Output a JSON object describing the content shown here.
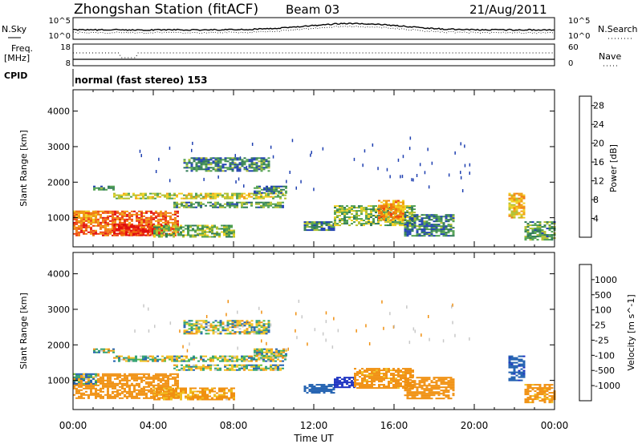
{
  "header": {
    "station": "Zhongshan Station (fitACF)",
    "beam": "Beam 03",
    "date": "21/Aug/2011"
  },
  "nsky_panel": {
    "left_label": "N.Sky",
    "right_label": "N.Search",
    "left_ticks": [
      "10^5",
      "10^0"
    ],
    "right_ticks": [
      "10^5",
      "10^0"
    ]
  },
  "freq_panel": {
    "left_label_1": "Freq.",
    "left_label_2": "[MHz]",
    "left_ticks": [
      "18",
      "8"
    ],
    "right_ticks": [
      "60",
      "0"
    ],
    "right_label": "Nave"
  },
  "cpid_panel": {
    "label": "CPID",
    "text": "normal (fast stereo) 153"
  },
  "x_axis": {
    "label": "Time UT",
    "ticks": [
      "00:00",
      "04:00",
      "08:00",
      "12:00",
      "16:00",
      "20:00",
      "00:00"
    ]
  },
  "y_axis": {
    "label": "Slant Range [km]",
    "ticks": [
      "1000",
      "2000",
      "3000",
      "4000"
    ]
  },
  "power_colorbar": {
    "label": "Power [dB]",
    "ticks": [
      "4",
      "8",
      "12",
      "16",
      "20",
      "24",
      "28"
    ],
    "colors": [
      "#1a1aff",
      "#1e3fb0",
      "#2f7a55",
      "#50a050",
      "#b0c030",
      "#f0d020",
      "#f0a010",
      "#f07810",
      "#f04010",
      "#e01010"
    ]
  },
  "velocity_colorbar": {
    "label": "Velocity [m s^-1]",
    "ticks": [
      "1000",
      "500",
      "100",
      "25",
      "-25",
      "-100",
      "-500",
      "-1000"
    ],
    "colors": [
      "#1a30c0",
      "#2060b0",
      "#30a070",
      "#60c040",
      "#c8c8c8",
      "#f0c020",
      "#f09010",
      "#f06010",
      "#e02010"
    ]
  },
  "chart_data": {
    "type": "heatmap",
    "title": "Zhongshan Station (fitACF) Beam 03 21/Aug/2011",
    "xlabel": "Time UT",
    "ylabel": "Slant Range [km]",
    "xlim_hours": [
      0,
      24
    ],
    "ylim_km": [
      180,
      4600
    ],
    "panels": [
      {
        "name": "Power",
        "unit": "dB",
        "scale": [
          0,
          30
        ],
        "regions": [
          {
            "t0": 0.0,
            "t1": 5.2,
            "r0": 500,
            "r1": 1200,
            "level": 24
          },
          {
            "t0": 2.0,
            "t1": 4.5,
            "r0": 500,
            "r1": 800,
            "level": 28
          },
          {
            "t0": 0.0,
            "t1": 1.2,
            "r0": 900,
            "r1": 1200,
            "level": 20
          },
          {
            "t0": 4.0,
            "t1": 8.0,
            "r0": 450,
            "r1": 800,
            "level": 12
          },
          {
            "t0": 1.0,
            "t1": 2.0,
            "r0": 1800,
            "r1": 1900,
            "level": 8
          },
          {
            "t0": 2.0,
            "t1": 10.6,
            "r0": 1550,
            "r1": 1700,
            "level": 14
          },
          {
            "t0": 5.0,
            "t1": 10.5,
            "r0": 1300,
            "r1": 1450,
            "level": 10
          },
          {
            "t0": 9.0,
            "t1": 10.6,
            "r0": 1700,
            "r1": 1900,
            "level": 8
          },
          {
            "t0": 5.5,
            "t1": 9.8,
            "r0": 2300,
            "r1": 2700,
            "level": 8
          },
          {
            "t0": 11.5,
            "t1": 13.0,
            "r0": 650,
            "r1": 900,
            "level": 8
          },
          {
            "t0": 13.0,
            "t1": 17.0,
            "r0": 800,
            "r1": 1350,
            "level": 12
          },
          {
            "t0": 15.2,
            "t1": 16.5,
            "r0": 950,
            "r1": 1500,
            "level": 20
          },
          {
            "t0": 16.5,
            "t1": 19.0,
            "r0": 500,
            "r1": 1100,
            "level": 8
          },
          {
            "t0": 21.7,
            "t1": 22.5,
            "r0": 1000,
            "r1": 1700,
            "level": 18
          },
          {
            "t0": 22.5,
            "t1": 24.0,
            "r0": 400,
            "r1": 900,
            "level": 10
          }
        ]
      },
      {
        "name": "Velocity",
        "unit": "m s^-1",
        "scale": [
          -1000,
          1000
        ],
        "regions": [
          {
            "t0": 0.0,
            "t1": 5.2,
            "r0": 500,
            "r1": 1200,
            "level": -300
          },
          {
            "t0": 4.0,
            "t1": 8.0,
            "r0": 450,
            "r1": 800,
            "level": -150
          },
          {
            "t0": 0.0,
            "t1": 1.2,
            "r0": 900,
            "r1": 1200,
            "level": 80
          },
          {
            "t0": 1.0,
            "t1": 2.0,
            "r0": 1800,
            "r1": 1900,
            "level": 0
          },
          {
            "t0": 2.0,
            "t1": 10.6,
            "r0": 1550,
            "r1": 1700,
            "level": 0
          },
          {
            "t0": 5.0,
            "t1": 10.5,
            "r0": 1300,
            "r1": 1450,
            "level": 0
          },
          {
            "t0": 9.0,
            "t1": 10.6,
            "r0": 1700,
            "r1": 1900,
            "level": 0
          },
          {
            "t0": 5.5,
            "t1": 9.8,
            "r0": 2300,
            "r1": 2700,
            "level": 0
          },
          {
            "t0": 11.5,
            "t1": 13.0,
            "r0": 650,
            "r1": 900,
            "level": 300
          },
          {
            "t0": 13.0,
            "t1": 14.0,
            "r0": 800,
            "r1": 1100,
            "level": 800
          },
          {
            "t0": 14.0,
            "t1": 17.0,
            "r0": 800,
            "r1": 1350,
            "level": -200
          },
          {
            "t0": 16.5,
            "t1": 19.0,
            "r0": 500,
            "r1": 1100,
            "level": -300
          },
          {
            "t0": 21.7,
            "t1": 22.5,
            "r0": 1000,
            "r1": 1700,
            "level": 400
          },
          {
            "t0": 22.5,
            "t1": 24.0,
            "r0": 400,
            "r1": 900,
            "level": -200
          }
        ]
      }
    ]
  }
}
